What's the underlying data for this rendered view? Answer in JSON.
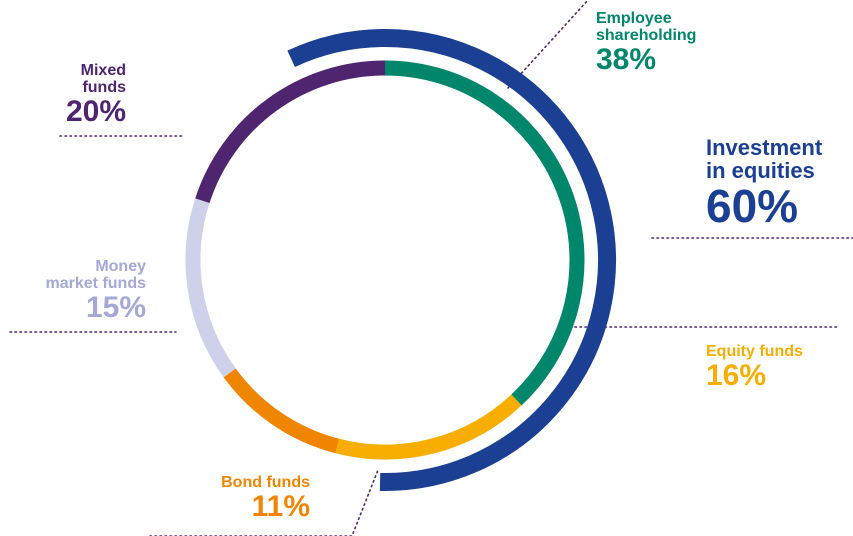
{
  "chart_data": {
    "type": "pie",
    "style": "donut",
    "segments": [
      {
        "label_lines": [
          "Employee",
          "shareholding"
        ],
        "value": 38,
        "display": "38%",
        "color": "#00866A"
      },
      {
        "label_lines": [
          "Equity funds"
        ],
        "value": 16,
        "display": "16%",
        "color": "#F7AE00"
      },
      {
        "label_lines": [
          "Bond funds"
        ],
        "value": 11,
        "display": "11%",
        "color": "#EF8500"
      },
      {
        "label_lines": [
          "Money",
          "market funds"
        ],
        "value": 15,
        "display": "15%",
        "color": "#CFD0EA"
      },
      {
        "label_lines": [
          "Mixed",
          "funds"
        ],
        "value": 20,
        "display": "20%",
        "color": "#4F2570"
      }
    ],
    "outer_group": {
      "label_lines": [
        "Investment",
        "in equities"
      ],
      "value": 60,
      "display": "60%",
      "color": "#1B3F93"
    }
  }
}
